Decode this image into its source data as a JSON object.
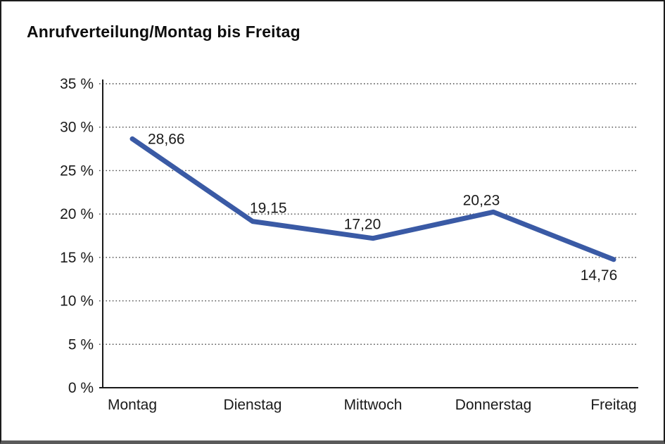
{
  "chart_data": {
    "type": "line",
    "title": "Anrufverteilung/Montag bis Freitag",
    "categories": [
      "Montag",
      "Dienstag",
      "Mittwoch",
      "Donnerstag",
      "Freitag"
    ],
    "series": [
      {
        "name": "Anrufverteilung",
        "values": [
          28.66,
          19.15,
          17.2,
          20.23,
          14.76
        ]
      }
    ],
    "point_labels": [
      "28,66",
      "19,15",
      "17,20",
      "20,23",
      "14,76"
    ],
    "xlabel": "",
    "ylabel": "",
    "ylim": [
      0,
      35
    ],
    "ytick_step": 5,
    "ytick_labels": [
      "0 %",
      "5 %",
      "10 %",
      "15 %",
      "20 %",
      "25 %",
      "30 %",
      "35 %"
    ],
    "grid": "horizontal-dotted",
    "legend_position": "none",
    "colors": {
      "line": "#3a5aa5",
      "axis": "#1a1a1a",
      "gridline": "#4a4a4a",
      "text": "#1a1a1a",
      "background": "#ffffff"
    }
  }
}
